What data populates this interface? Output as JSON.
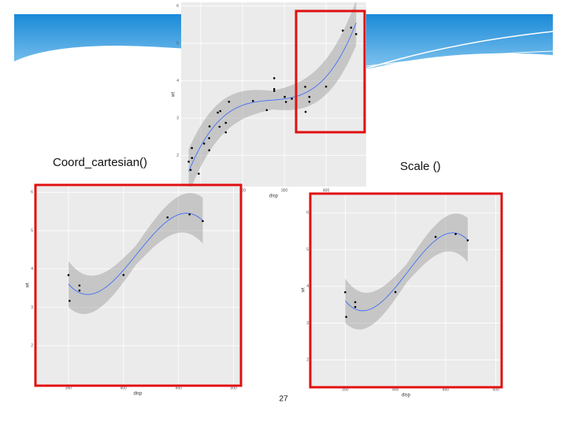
{
  "slide": {
    "labels": [
      "Coord_cartesian()",
      "Scale ()"
    ],
    "page_number": "27"
  },
  "chart_data": [
    {
      "type": "scatter",
      "x_label": "disp",
      "y_label": "wt",
      "x": [
        160,
        160,
        108,
        258,
        360,
        225,
        360,
        146.7,
        140.8,
        167.6,
        167.6,
        275.8,
        275.8,
        275.8,
        472,
        460,
        440,
        78.7,
        75.7,
        71.1,
        120.1,
        318,
        304,
        350,
        400,
        79,
        120.3,
        95.1,
        351,
        145,
        301,
        121
      ],
      "values": [
        2.62,
        2.875,
        2.32,
        3.215,
        3.44,
        3.46,
        3.57,
        3.19,
        3.15,
        3.44,
        3.44,
        4.07,
        3.73,
        3.78,
        5.25,
        5.424,
        5.345,
        2.2,
        1.615,
        1.835,
        2.465,
        3.52,
        3.435,
        3.84,
        3.845,
        1.935,
        2.14,
        1.513,
        3.17,
        2.77,
        3.57,
        2.78
      ],
      "xlim": [
        53,
        496
      ],
      "ylim": [
        1.17,
        6.1
      ],
      "xticks": [
        100,
        200,
        300,
        400
      ],
      "yticks": [
        2,
        3,
        4,
        5,
        6
      ],
      "grid": true,
      "color": "#000000",
      "fit_color": "#3366ff"
    },
    {
      "type": "scatter",
      "x_label": "disp",
      "y_label": "wt",
      "x": [
        350,
        351,
        360,
        360,
        400,
        440,
        460,
        472
      ],
      "values": [
        3.84,
        3.17,
        3.44,
        3.57,
        3.845,
        5.345,
        5.424,
        5.25
      ],
      "xlim": [
        320,
        506
      ],
      "ylim": [
        1.0,
        6.15
      ],
      "xticks": [
        350,
        400,
        450,
        500
      ],
      "yticks": [
        2,
        3,
        4,
        5,
        6
      ],
      "grid": true,
      "color": "#000000",
      "fit_color": "#3366ff"
    },
    {
      "type": "scatter",
      "x_label": "disp",
      "y_label": "wt",
      "x": [
        350,
        351,
        360,
        360,
        400,
        440,
        460,
        472
      ],
      "values": [
        3.84,
        3.17,
        3.44,
        3.57,
        3.845,
        5.345,
        5.424,
        5.25
      ],
      "xlim": [
        316,
        505
      ],
      "ylim": [
        1.3,
        6.5
      ],
      "xticks": [
        350,
        400,
        450,
        500
      ],
      "yticks": [
        2,
        3,
        4,
        5,
        6
      ],
      "grid": true,
      "color": "#000000",
      "fit_color": "#3366ff"
    }
  ]
}
